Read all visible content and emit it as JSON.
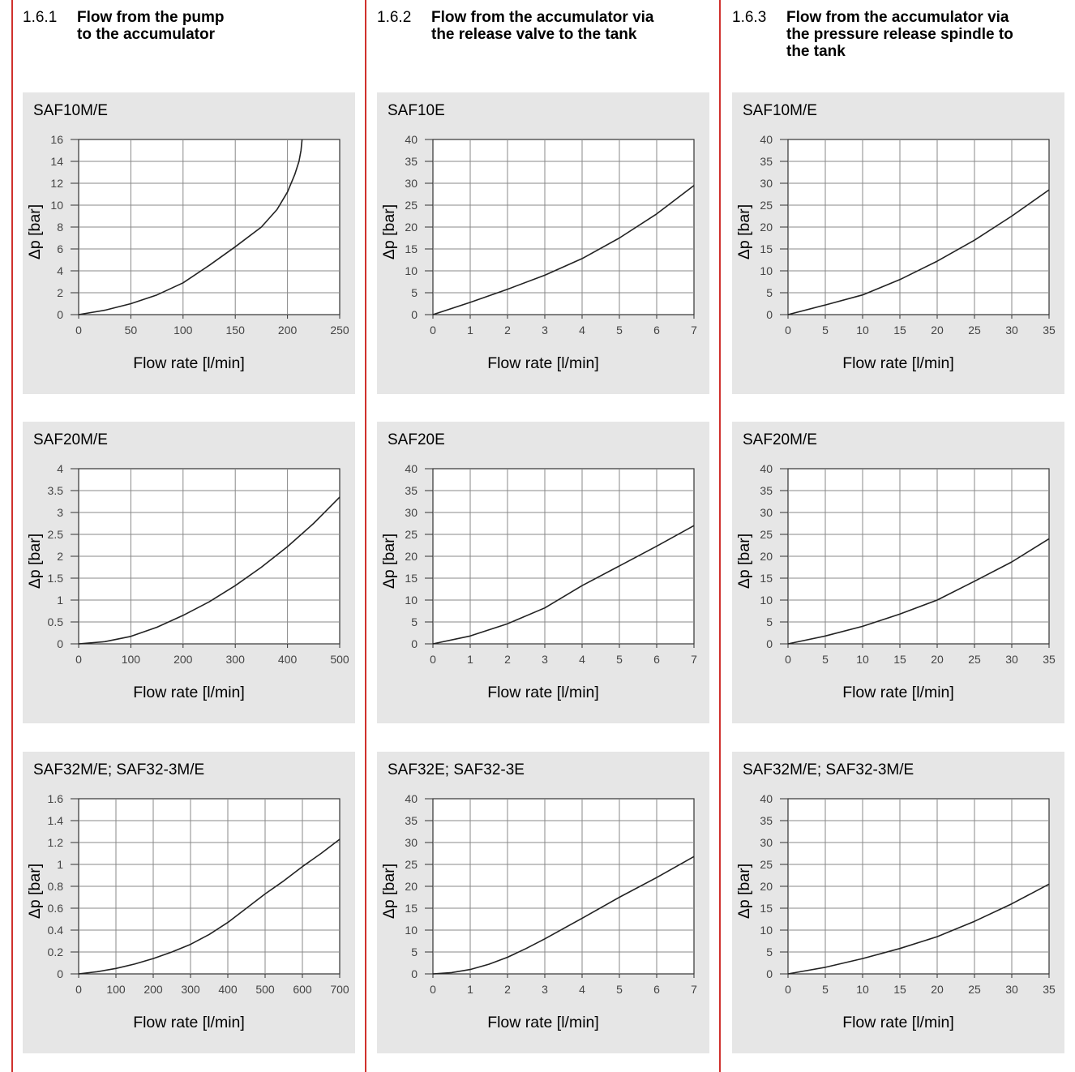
{
  "sections": [
    {
      "number": "1.6.1",
      "title": "Flow from the pump\nto the accumulator"
    },
    {
      "number": "1.6.2",
      "title": "Flow from the accumulator via\nthe release valve to the tank"
    },
    {
      "number": "1.6.3",
      "title": "Flow from the accumulator via\nthe pressure release spindle to\nthe tank"
    }
  ],
  "colors": {
    "divider": "#d0312d",
    "panel_bg": "#e6e6e6",
    "curve": "#222222",
    "grid": "#888888"
  },
  "chart_data": [
    {
      "type": "line",
      "title": "SAF10M/E",
      "xlabel": "Flow rate [l/min]",
      "ylabel": "Δp [bar]",
      "xticks": [
        "0",
        "50",
        "100",
        "150",
        "200",
        "250"
      ],
      "yticks": [
        "0",
        "2",
        "4",
        "6",
        "8",
        "10",
        "12",
        "14",
        "16"
      ],
      "xlim": [
        0,
        250
      ],
      "ylim": [
        0,
        16
      ],
      "grid": true,
      "x": [
        0,
        25,
        50,
        75,
        100,
        125,
        150,
        175,
        190,
        200,
        207,
        211,
        213,
        214
      ],
      "y": [
        0,
        0.4,
        1.0,
        1.8,
        2.9,
        4.5,
        6.2,
        8.0,
        9.6,
        11.2,
        12.8,
        14.0,
        15.0,
        16.0
      ]
    },
    {
      "type": "line",
      "title": "SAF10E",
      "xlabel": "Flow rate [l/min]",
      "ylabel": "Δp [bar]",
      "xticks": [
        "0",
        "1",
        "2",
        "3",
        "4",
        "5",
        "6",
        "7"
      ],
      "yticks": [
        "0",
        "5",
        "10",
        "15",
        "20",
        "25",
        "30",
        "35",
        "40"
      ],
      "xlim": [
        0,
        7
      ],
      "ylim": [
        0,
        40
      ],
      "grid": true,
      "x": [
        0,
        1,
        2,
        3,
        4,
        5,
        6,
        7
      ],
      "y": [
        0,
        2.8,
        5.8,
        9.0,
        12.8,
        17.5,
        23.0,
        29.5
      ]
    },
    {
      "type": "line",
      "title": "SAF10M/E",
      "xlabel": "Flow rate [l/min]",
      "ylabel": "Δp [bar]",
      "xticks": [
        "0",
        "5",
        "10",
        "15",
        "20",
        "25",
        "30",
        "35"
      ],
      "yticks": [
        "0",
        "5",
        "10",
        "15",
        "20",
        "25",
        "30",
        "35",
        "40"
      ],
      "xlim": [
        0,
        35
      ],
      "ylim": [
        0,
        40
      ],
      "grid": true,
      "x": [
        0,
        5,
        10,
        15,
        20,
        25,
        30,
        35
      ],
      "y": [
        0,
        2.2,
        4.5,
        8.0,
        12.2,
        17.0,
        22.5,
        28.5
      ]
    },
    {
      "type": "line",
      "title": "SAF20M/E",
      "xlabel": "Flow rate [l/min]",
      "ylabel": "Δp [bar]",
      "xticks": [
        "0",
        "100",
        "200",
        "300",
        "400",
        "500"
      ],
      "yticks": [
        "0",
        "0.5",
        "1",
        "1.5",
        "2",
        "2.5",
        "3",
        "3.5",
        "4"
      ],
      "xlim": [
        0,
        500
      ],
      "ylim": [
        0,
        4
      ],
      "grid": true,
      "x": [
        0,
        50,
        100,
        150,
        200,
        250,
        300,
        350,
        400,
        450,
        500
      ],
      "y": [
        0,
        0.05,
        0.17,
        0.38,
        0.65,
        0.96,
        1.33,
        1.75,
        2.22,
        2.75,
        3.35
      ]
    },
    {
      "type": "line",
      "title": "SAF20E",
      "xlabel": "Flow rate [l/min]",
      "ylabel": "Δp [bar]",
      "xticks": [
        "0",
        "1",
        "2",
        "3",
        "4",
        "5",
        "6",
        "7"
      ],
      "yticks": [
        "0",
        "5",
        "10",
        "15",
        "20",
        "25",
        "30",
        "35",
        "40"
      ],
      "xlim": [
        0,
        7
      ],
      "ylim": [
        0,
        40
      ],
      "grid": true,
      "x": [
        0,
        1,
        2,
        3,
        4,
        5,
        6,
        7
      ],
      "y": [
        0,
        1.8,
        4.6,
        8.2,
        13.3,
        17.8,
        22.3,
        27.0
      ]
    },
    {
      "type": "line",
      "title": "SAF20M/E",
      "xlabel": "Flow rate [l/min]",
      "ylabel": "Δp [bar]",
      "xticks": [
        "0",
        "5",
        "10",
        "15",
        "20",
        "25",
        "30",
        "35"
      ],
      "yticks": [
        "0",
        "5",
        "10",
        "15",
        "20",
        "25",
        "30",
        "35",
        "40"
      ],
      "xlim": [
        0,
        35
      ],
      "ylim": [
        0,
        40
      ],
      "grid": true,
      "x": [
        0,
        5,
        10,
        15,
        20,
        25,
        30,
        35
      ],
      "y": [
        0,
        1.8,
        4.0,
        6.8,
        10.0,
        14.3,
        18.7,
        24.0
      ]
    },
    {
      "type": "line",
      "title": "SAF32M/E; SAF32-3M/E",
      "xlabel": "Flow rate [l/min]",
      "ylabel": "Δp [bar]",
      "xticks": [
        "0",
        "100",
        "200",
        "300",
        "400",
        "500",
        "600",
        "700"
      ],
      "yticks": [
        "0",
        "0.2",
        "0.4",
        "0.6",
        "0.8",
        "1",
        "1.2",
        "1.4",
        "1.6"
      ],
      "xlim": [
        0,
        700
      ],
      "ylim": [
        0,
        1.6
      ],
      "grid": true,
      "x": [
        0,
        50,
        100,
        150,
        200,
        250,
        300,
        350,
        400,
        450,
        500,
        550,
        600,
        650,
        700
      ],
      "y": [
        0,
        0.02,
        0.05,
        0.09,
        0.14,
        0.2,
        0.27,
        0.36,
        0.47,
        0.6,
        0.73,
        0.85,
        0.98,
        1.1,
        1.23
      ]
    },
    {
      "type": "line",
      "title": "SAF32E; SAF32-3E",
      "xlabel": "Flow rate [l/min]",
      "ylabel": "Δp [bar]",
      "xticks": [
        "0",
        "1",
        "2",
        "3",
        "4",
        "5",
        "6",
        "7"
      ],
      "yticks": [
        "0",
        "5",
        "10",
        "15",
        "20",
        "25",
        "30",
        "35",
        "40"
      ],
      "xlim": [
        0,
        7
      ],
      "ylim": [
        0,
        40
      ],
      "grid": true,
      "x": [
        0,
        0.5,
        1,
        1.5,
        2,
        2.5,
        3,
        4,
        5,
        6,
        7
      ],
      "y": [
        0,
        0.3,
        1.0,
        2.2,
        3.8,
        5.8,
        8.0,
        12.7,
        17.5,
        22.0,
        26.8
      ]
    },
    {
      "type": "line",
      "title": "SAF32M/E; SAF32-3M/E",
      "xlabel": "Flow rate [l/min]",
      "ylabel": "Δp [bar]",
      "xticks": [
        "0",
        "5",
        "10",
        "15",
        "20",
        "25",
        "30",
        "35"
      ],
      "yticks": [
        "0",
        "5",
        "10",
        "15",
        "20",
        "25",
        "30",
        "35",
        "40"
      ],
      "xlim": [
        0,
        35
      ],
      "ylim": [
        0,
        40
      ],
      "grid": true,
      "x": [
        0,
        5,
        10,
        15,
        20,
        25,
        30,
        35
      ],
      "y": [
        0,
        1.5,
        3.5,
        5.8,
        8.5,
        12.0,
        16.0,
        20.5
      ]
    }
  ]
}
